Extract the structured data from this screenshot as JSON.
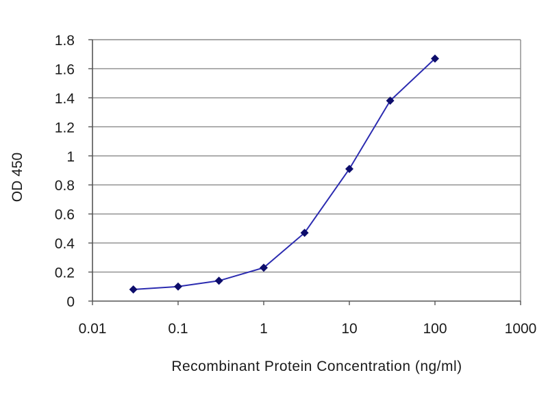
{
  "chart_data": {
    "type": "line",
    "title": "",
    "xlabel": "Recombinant Protein Concentration (ng/ml)",
    "ylabel": "OD 450",
    "xscale": "log",
    "xlim": [
      0.01,
      1000
    ],
    "ylim": [
      0,
      1.8
    ],
    "x_ticks": [
      0.01,
      0.1,
      1,
      10,
      100,
      1000
    ],
    "x_tick_labels": [
      "0.01",
      "0.1",
      "1",
      "10",
      "100",
      "1000"
    ],
    "y_ticks": [
      0,
      0.2,
      0.4,
      0.6,
      0.8,
      1,
      1.2,
      1.4,
      1.6,
      1.8
    ],
    "y_tick_labels": [
      "0",
      "0.2",
      "0.4",
      "0.6",
      "0.8",
      "1",
      "1.2",
      "1.4",
      "1.6",
      "1.8"
    ],
    "grid": "horizontal",
    "legend": "none",
    "series": [
      {
        "x": [
          0.03,
          0.1,
          0.3,
          1,
          3,
          10,
          30,
          100
        ],
        "y": [
          0.08,
          0.1,
          0.14,
          0.23,
          0.47,
          0.91,
          1.38,
          1.67
        ],
        "color": "#2b2bb0",
        "marker_color": "#0d0d6b"
      }
    ],
    "colors": {
      "grid": "#8a8a8a",
      "axis": "#555555",
      "plot_border": "#8a8a8a"
    }
  }
}
